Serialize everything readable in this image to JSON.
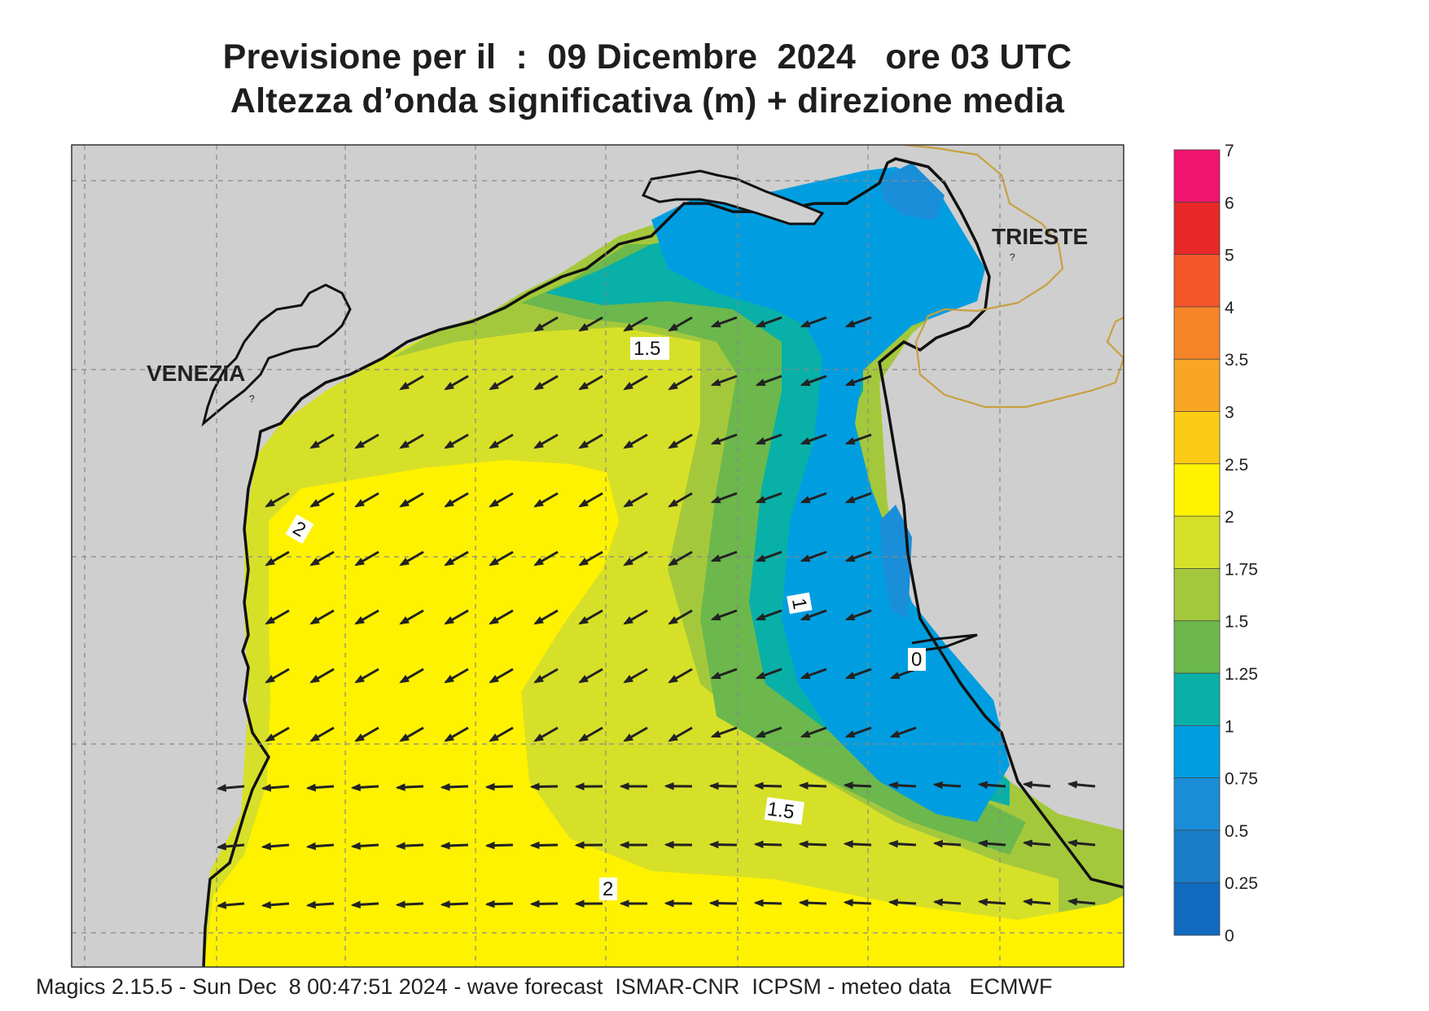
{
  "header": {
    "line1": "Previsione per il  :  09 Dicembre  2024   ore 03 UTC",
    "line2": "Altezza d’onda significativa (m) + direzione media"
  },
  "places": {
    "venezia": "VENEZIA",
    "trieste": "TRIESTE",
    "marker": "?"
  },
  "contour_labels": [
    "1.5",
    "2",
    "1",
    "0",
    "1.5",
    "2"
  ],
  "colorbar": {
    "ticks": [
      "7",
      "6",
      "5",
      "4",
      "3.5",
      "3",
      "2.5",
      "2",
      "1.75",
      "1.5",
      "1.25",
      "1",
      "0.75",
      "0.5",
      "0.25",
      "0"
    ],
    "colors": [
      "#f0146e",
      "#e82828",
      "#f4562a",
      "#f68428",
      "#f8a624",
      "#fccc14",
      "#fff200",
      "#d7e028",
      "#a4c83c",
      "#6cb84c",
      "#08b0a8",
      "#009ee0",
      "#1a8ed8",
      "#187ec8",
      "#106ac0"
    ]
  },
  "footer": "Magics 2.15.5 - Sun Dec  8 00:47:51 2024 - wave forecast  ISMAR-CNR  ICPSM - meteo data   ECMWF"
}
